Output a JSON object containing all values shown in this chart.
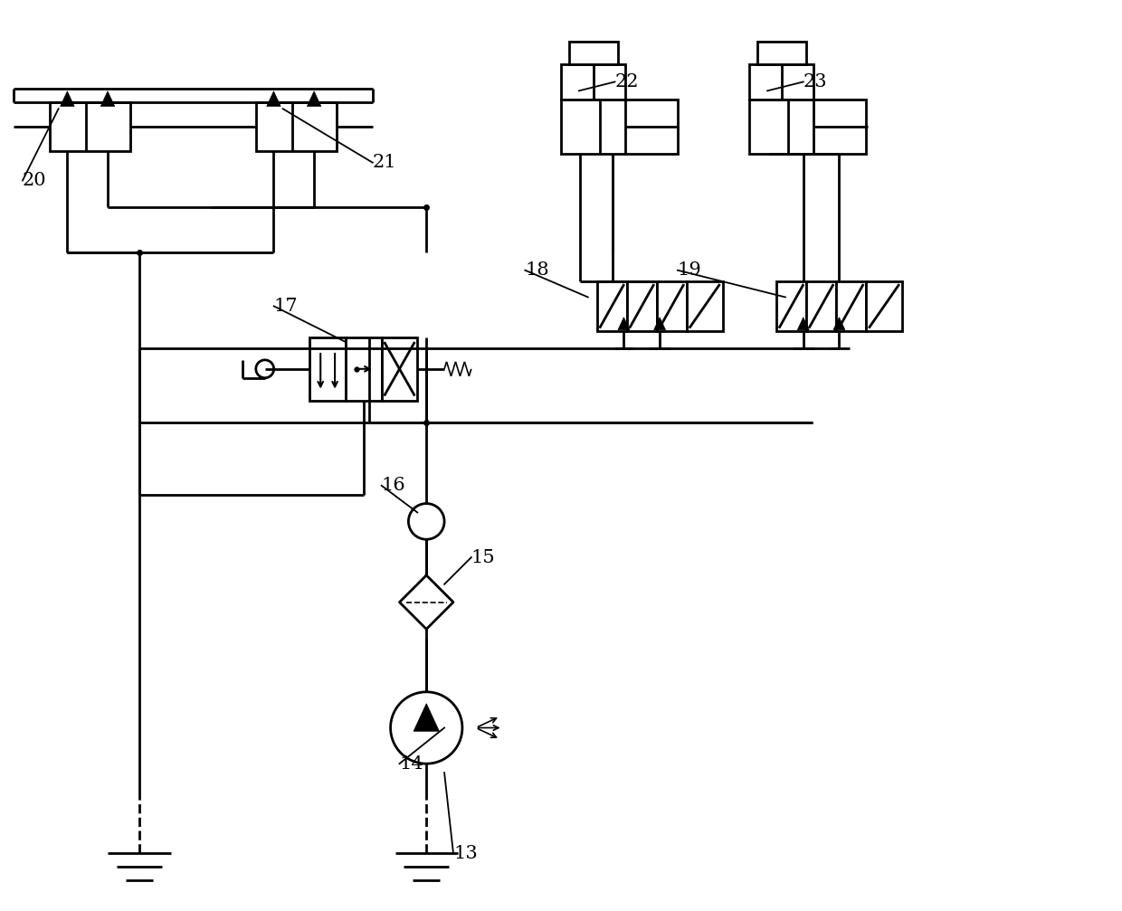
{
  "bg_color": "#ffffff",
  "line_color": "#000000",
  "lw": 2.0,
  "fig_w": 12.4,
  "fig_h": 10.07,
  "xmax": 124.0,
  "ymax": 100.7
}
